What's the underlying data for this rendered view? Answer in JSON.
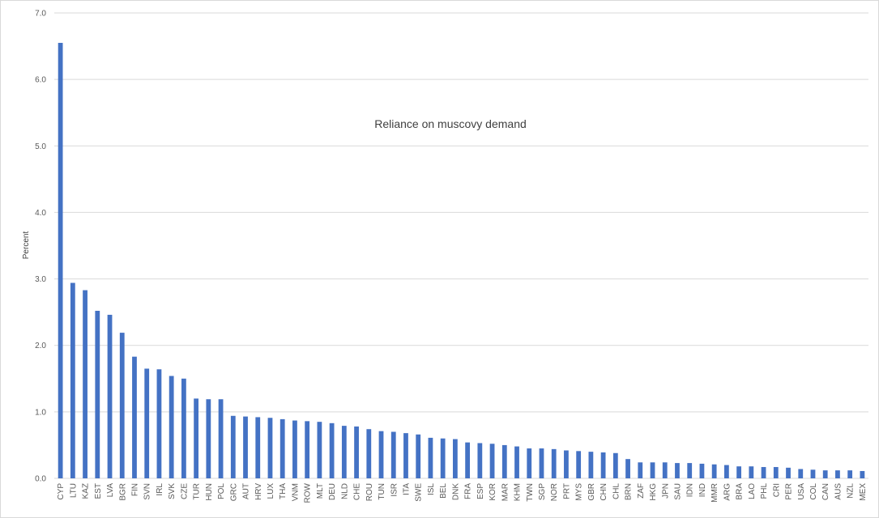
{
  "chart_data": {
    "type": "bar",
    "title": "Reliance on muscovy demand",
    "xlabel": "",
    "ylabel": "Percent",
    "ylim": [
      0,
      7
    ],
    "yticks": [
      "0.0",
      "1.0",
      "2.0",
      "3.0",
      "4.0",
      "5.0",
      "6.0",
      "7.0"
    ],
    "grid": true,
    "bar_color": "#4472c4",
    "categories": [
      "CYP",
      "LTU",
      "KAZ",
      "EST",
      "LVA",
      "BGR",
      "FIN",
      "SVN",
      "IRL",
      "SVK",
      "CZE",
      "TUR",
      "HUN",
      "POL",
      "GRC",
      "AUT",
      "HRV",
      "LUX",
      "THA",
      "VNM",
      "ROW",
      "MLT",
      "DEU",
      "NLD",
      "CHE",
      "ROU",
      "TUN",
      "ISR",
      "ITA",
      "SWE",
      "ISL",
      "BEL",
      "DNK",
      "FRA",
      "ESP",
      "KOR",
      "MAR",
      "KHM",
      "TWN",
      "SGP",
      "NOR",
      "PRT",
      "MYS",
      "GBR",
      "CHN",
      "CHL",
      "BRN",
      "ZAF",
      "HKG",
      "JPN",
      "SAU",
      "IDN",
      "IND",
      "MMR",
      "ARG",
      "BRA",
      "LAO",
      "PHL",
      "CRI",
      "PER",
      "USA",
      "COL",
      "CAN",
      "AUS",
      "NZL",
      "MEX"
    ],
    "values": [
      6.55,
      2.94,
      2.83,
      2.52,
      2.46,
      2.19,
      1.83,
      1.65,
      1.64,
      1.54,
      1.5,
      1.2,
      1.19,
      1.19,
      0.94,
      0.93,
      0.92,
      0.91,
      0.89,
      0.87,
      0.86,
      0.85,
      0.83,
      0.79,
      0.78,
      0.74,
      0.71,
      0.7,
      0.68,
      0.66,
      0.61,
      0.6,
      0.59,
      0.54,
      0.53,
      0.52,
      0.5,
      0.48,
      0.45,
      0.45,
      0.44,
      0.42,
      0.41,
      0.4,
      0.39,
      0.38,
      0.29,
      0.24,
      0.24,
      0.24,
      0.23,
      0.23,
      0.22,
      0.21,
      0.2,
      0.18,
      0.18,
      0.17,
      0.17,
      0.16,
      0.14,
      0.13,
      0.12,
      0.12,
      0.12,
      0.11
    ]
  }
}
